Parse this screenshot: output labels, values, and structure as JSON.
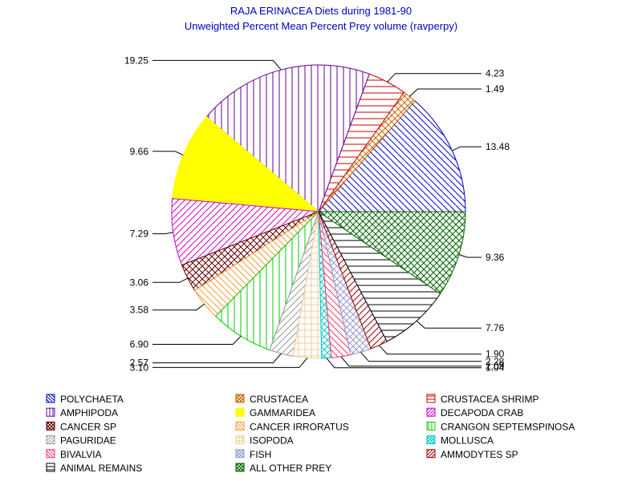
{
  "chart_data": {
    "type": "pie",
    "title": "RAJA ERINACEA Diets during 1981-90",
    "subtitle": "Unweighted Percent Mean Percent Prey  volume (ravperpy)",
    "slices": [
      {
        "name": "POLYCHAETA",
        "value": 13.48,
        "label": "13.48",
        "color": "#0000cc",
        "pattern": "diag-down"
      },
      {
        "name": "CRUSTACEA",
        "value": 1.49,
        "label": "1.49",
        "color": "#cc6600",
        "pattern": "cross-diag"
      },
      {
        "name": "CRUSTACEA SHRIMP",
        "value": 4.23,
        "label": "4.23",
        "color": "#cc0000",
        "pattern": "horiz"
      },
      {
        "name": "AMPHIPODA",
        "value": 19.25,
        "label": "19.25",
        "color": "#660099",
        "pattern": "vert"
      },
      {
        "name": "GAMMARIDEA",
        "value": 9.66,
        "label": "9.66",
        "color": "#ffff00",
        "pattern": "solid"
      },
      {
        "name": "DECAPODA CRAB",
        "value": 7.29,
        "label": "7.29",
        "color": "#cc00cc",
        "pattern": "diag-up"
      },
      {
        "name": "CANCER SP",
        "value": 3.06,
        "label": "3.06",
        "color": "#660000",
        "pattern": "cross-diag"
      },
      {
        "name": "CANCER IRRORATUS",
        "value": 3.58,
        "label": "3.58",
        "color": "#ff9933",
        "pattern": "diag-down"
      },
      {
        "name": "CRANGON SEPTEMSPINOSA",
        "value": 6.9,
        "label": "6.90",
        "color": "#00cc00",
        "pattern": "vert"
      },
      {
        "name": "PAGURIDAE",
        "value": 2.57,
        "label": "2.57",
        "color": "#999999",
        "pattern": "diag-up"
      },
      {
        "name": "ISOPODA",
        "value": 3.1,
        "label": "3.10",
        "color": "#eecc99",
        "pattern": "grid"
      },
      {
        "name": "MOLLUSCA",
        "value": 1.04,
        "label": "1.04",
        "color": "#00cccc",
        "pattern": "cross-diag"
      },
      {
        "name": "BIVALVIA",
        "value": 2.09,
        "label": "2.09",
        "color": "#ff3366",
        "pattern": "diag-down"
      },
      {
        "name": "FISH",
        "value": 2.28,
        "label": "2.28",
        "color": "#9999cc",
        "pattern": "cross-diag"
      },
      {
        "name": "AMMODYTES SP",
        "value": 1.9,
        "label": "1.90",
        "color": "#990000",
        "pattern": "diag-up"
      },
      {
        "name": "ANIMAL REMAINS",
        "value": 7.76,
        "label": "7.76",
        "color": "#000000",
        "pattern": "horiz"
      },
      {
        "name": "ALL OTHER PREY",
        "value": 9.36,
        "label": "9.36",
        "color": "#006600",
        "pattern": "cross-diag"
      }
    ],
    "start_angle_deg": 0,
    "direction": "counterclockwise",
    "legend_position": "bottom"
  }
}
